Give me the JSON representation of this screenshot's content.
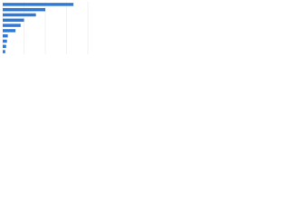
{
  "chart_data": {
    "type": "hbar",
    "categories": [
      null,
      null,
      null,
      null,
      null,
      null,
      null,
      null,
      null,
      null
    ],
    "values": [
      83,
      50,
      39,
      25,
      21,
      15,
      6,
      5,
      4,
      3
    ],
    "color": "#2f7ad6",
    "xlim": [
      0,
      100
    ],
    "xticks": [
      0,
      25,
      50,
      75,
      100
    ],
    "grid": true
  }
}
